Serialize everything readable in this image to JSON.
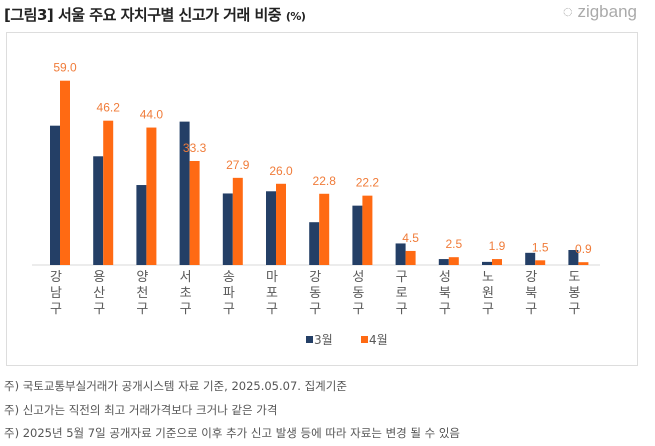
{
  "header": {
    "title": "[그림3] 서울 주요 자치구별 신고가 거래 비중",
    "unit": "(%)",
    "logo": "zigbang"
  },
  "chart_data": {
    "type": "bar",
    "title": "[그림3] 서울 주요 자치구별 신고가 거래 비중 (%)",
    "categories": [
      "강남구",
      "용산구",
      "양천구",
      "서초구",
      "송파구",
      "마포구",
      "강동구",
      "성동구",
      "구로구",
      "성북구",
      "노원구",
      "강북구",
      "도봉구"
    ],
    "series": [
      {
        "name": "3월",
        "color": "#243f66",
        "values": [
          44.6,
          34.8,
          25.6,
          45.9,
          22.9,
          23.6,
          13.7,
          19.0,
          6.9,
          1.9,
          1.0,
          3.9,
          4.8
        ],
        "labeled": false
      },
      {
        "name": "4월",
        "color": "#ff6a13",
        "values": [
          59.0,
          46.2,
          44.0,
          33.3,
          27.9,
          26.0,
          22.8,
          22.2,
          4.5,
          2.5,
          1.9,
          1.5,
          0.9
        ],
        "labeled": true
      }
    ],
    "data_labels": [
      "59.0",
      "46.2",
      "44.0",
      "33.3",
      "27.9",
      "26.0",
      "22.8",
      "22.2",
      "4.5",
      "2.5",
      "1.9",
      "1.5",
      "0.9"
    ],
    "ylim": [
      0,
      60
    ],
    "grid": false,
    "legend": "bottom"
  },
  "notes": [
    "주) 국토교통부실거래가 공개시스템 자료 기준, 2025.05.07. 집계기준",
    "주) 신고가는 직전의 최고 거래가격보다 크거나 같은 가격",
    "주) 2025년 5월 7일 공개자료 기준으로 이후 추가 신고 발생 등에 따라 자료는 변경 될 수 있음"
  ]
}
